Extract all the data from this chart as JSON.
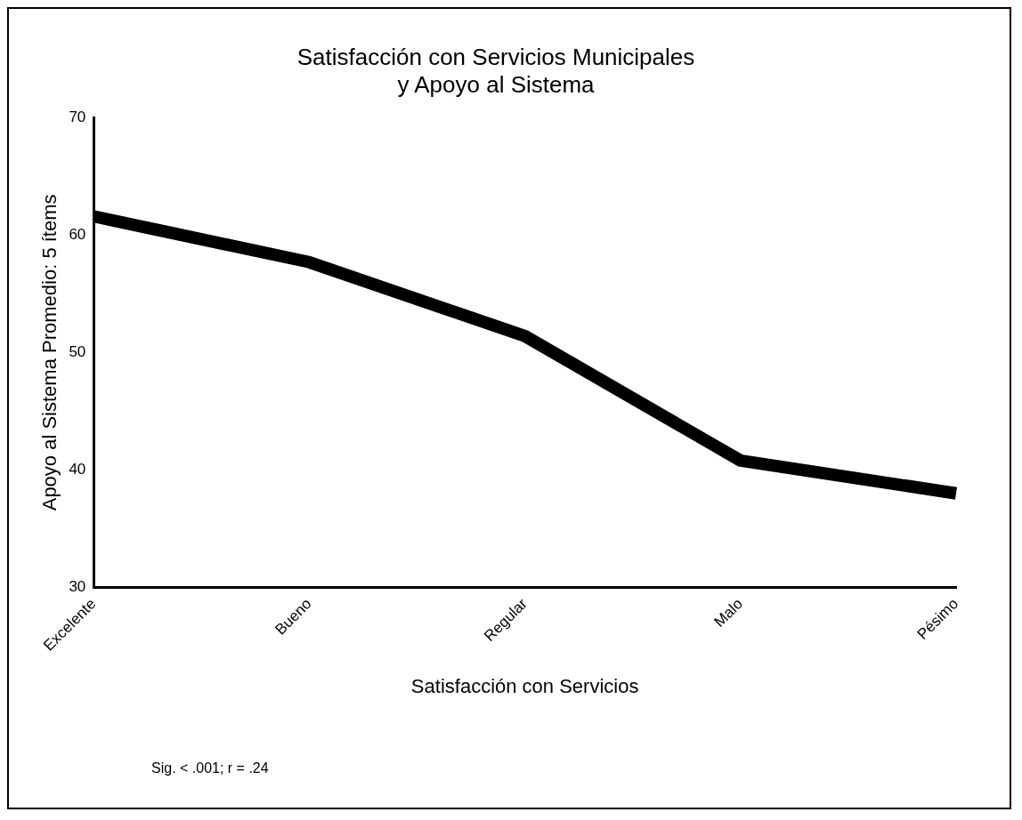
{
  "chart_data": {
    "type": "line",
    "title": [
      "Satisfacción con Servicios Municipales",
      "y Apoyo al Sistema"
    ],
    "xlabel": "Satisfacción con Servicios",
    "ylabel": "Apoyo al Sistema Promedio: 5 ítems",
    "categories": [
      "Excelente",
      "Bueno",
      "Regular",
      "Malo",
      "Pésimo"
    ],
    "series": [
      {
        "color": "#000000",
        "values": [
          61.6,
          57.7,
          51.4,
          40.8,
          38.0
        ]
      }
    ],
    "ylim": [
      30,
      70
    ],
    "yticks": [
      30,
      40,
      50,
      60,
      70
    ],
    "grid": false,
    "legend": false,
    "marker": "none",
    "line_style": "solid",
    "annotations": [
      "Sig. < .001; r = .24"
    ]
  }
}
